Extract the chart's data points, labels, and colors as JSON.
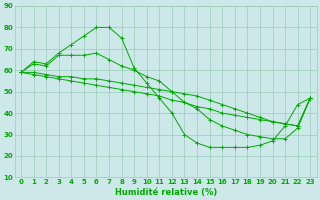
{
  "xlabel": "Humidité relative (%)",
  "background_color": "#cce8e8",
  "grid_color": "#99ccbb",
  "line_color": "#00aa00",
  "xlim": [
    -0.5,
    23.5
  ],
  "ylim": [
    10,
    90
  ],
  "yticks": [
    10,
    20,
    30,
    40,
    50,
    60,
    70,
    80,
    90
  ],
  "xticks": [
    0,
    1,
    2,
    3,
    4,
    5,
    6,
    7,
    8,
    9,
    10,
    11,
    12,
    13,
    14,
    15,
    16,
    17,
    18,
    19,
    20,
    21,
    22,
    23
  ],
  "series": [
    [
      59,
      64,
      63,
      68,
      72,
      76,
      80,
      80,
      75,
      61,
      54,
      47,
      40,
      30,
      26,
      24,
      24,
      24,
      24,
      25,
      27,
      34,
      44,
      47
    ],
    [
      59,
      63,
      62,
      67,
      67,
      67,
      68,
      65,
      62,
      60,
      57,
      55,
      50,
      45,
      42,
      37,
      34,
      32,
      30,
      29,
      28,
      28,
      33,
      47
    ],
    [
      59,
      59,
      58,
      57,
      57,
      56,
      56,
      55,
      54,
      53,
      52,
      51,
      50,
      49,
      48,
      46,
      44,
      42,
      40,
      38,
      36,
      35,
      34,
      47
    ],
    [
      59,
      58,
      57,
      56,
      55,
      54,
      53,
      52,
      51,
      50,
      49,
      48,
      46,
      45,
      43,
      42,
      40,
      39,
      38,
      37,
      36,
      35,
      34,
      47
    ]
  ],
  "xlabel_fontsize": 6.0,
  "tick_fontsize": 5.0
}
